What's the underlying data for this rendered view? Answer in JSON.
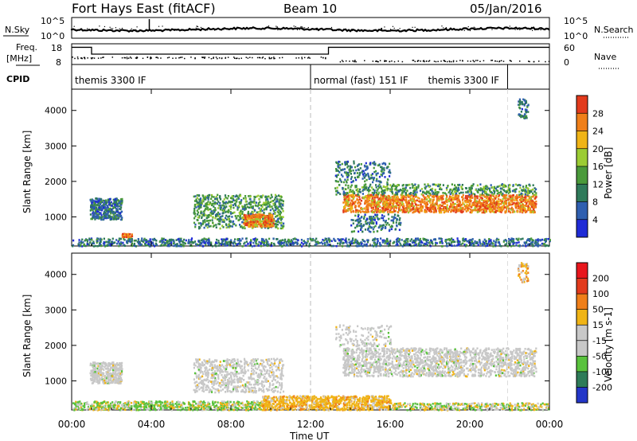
{
  "header": {
    "station": "Fort Hays East (fitACF)",
    "beam": "Beam 10",
    "date": "05/Jan/2016"
  },
  "top_panels": {
    "nsky_label": "N.Sky",
    "nsearch_label": "N.Search",
    "noise_ticks": [
      "10^5",
      "10^0"
    ],
    "freq_label": "Freq.",
    "freq_unit": "[MHz]",
    "freq_ticks": [
      "18",
      "8"
    ],
    "nave_label": "Nave",
    "nave_ticks": [
      "60",
      "0"
    ],
    "cpid_label": "CPID",
    "cpid_segments": [
      {
        "text": "themis 3300 IF",
        "start_hour": 0.0,
        "end_hour": 12.0
      },
      {
        "text": "normal (fast) 151 IF",
        "start_hour": 12.0,
        "end_hour": 21.9
      },
      {
        "text": "themis 3300 IF",
        "start_hour": 21.9,
        "end_hour": 24.0
      }
    ],
    "freq_series": [
      {
        "start_hour": 0.0,
        "end_hour": 1.0,
        "mhz": 16.3
      },
      {
        "start_hour": 1.0,
        "end_hour": 12.9,
        "mhz": 13.0
      },
      {
        "start_hour": 12.9,
        "end_hour": 24.0,
        "mhz": 16.3
      }
    ]
  },
  "x_axis": {
    "label": "Time UT",
    "ticks": [
      "00:00",
      "04:00",
      "08:00",
      "12:00",
      "16:00",
      "20:00",
      "00:00"
    ],
    "range_hours": [
      0,
      24
    ]
  },
  "chart_data": [
    {
      "type": "heatmap",
      "panel": "power",
      "ylabel": "Slant Range [km]",
      "yticks": [
        1000,
        2000,
        3000,
        4000
      ],
      "ylim": [
        180,
        4600
      ],
      "xlim": [
        0,
        24
      ],
      "colorbar": {
        "label": "Power [dB]",
        "ticks": [
          "4",
          "8",
          "12",
          "16",
          "20",
          "24",
          "28"
        ],
        "colors": [
          "#1f2bd6",
          "#2f5fb0",
          "#2f7a5a",
          "#4a9a3a",
          "#9bcc33",
          "#f0b416",
          "#f07f19",
          "#e23a1c"
        ]
      },
      "regions": [
        {
          "t0": 0.9,
          "t1": 2.5,
          "r0": 950,
          "r1": 1550,
          "dominant_db": 10
        },
        {
          "t0": 6.1,
          "t1": 10.6,
          "r0": 650,
          "r1": 1700,
          "dominant_db": 12
        },
        {
          "t0": 8.6,
          "t1": 10.1,
          "r0": 750,
          "r1": 1100,
          "dominant_db": 20
        },
        {
          "t0": 13.2,
          "t1": 23.4,
          "r0": 1200,
          "r1": 1900,
          "dominant_db": 24
        },
        {
          "t0": 22.4,
          "t1": 22.9,
          "r0": 3800,
          "r1": 4350,
          "dominant_db": 8
        }
      ]
    },
    {
      "type": "heatmap",
      "panel": "velocity",
      "ylabel": "Slant Range [km]",
      "yticks": [
        1000,
        2000,
        3000,
        4000
      ],
      "ylim": [
        180,
        4600
      ],
      "xlim": [
        0,
        24
      ],
      "colorbar": {
        "label": "Velocity [m s-1]",
        "ticks": [
          "200",
          "100",
          "50",
          "15",
          "-15",
          "-50",
          "-100",
          "-200"
        ],
        "colors": [
          "#2336c8",
          "#2e7b58",
          "#59c23d",
          "#c8c8c8",
          "#c8c8c8",
          "#f0b416",
          "#f07f19",
          "#e23a1c",
          "#e8161c"
        ]
      },
      "regions": [
        {
          "t0": 0.9,
          "t1": 2.5,
          "r0": 950,
          "r1": 1550,
          "dominant_ms": 0
        },
        {
          "t0": 6.1,
          "t1": 10.6,
          "r0": 650,
          "r1": 1700,
          "dominant_ms": 0
        },
        {
          "t0": 13.2,
          "t1": 23.4,
          "r0": 1200,
          "r1": 1900,
          "dominant_ms": 0
        },
        {
          "t0": 9.5,
          "t1": 16.0,
          "r0": 200,
          "r1": 600,
          "dominant_ms": -40
        }
      ]
    }
  ]
}
